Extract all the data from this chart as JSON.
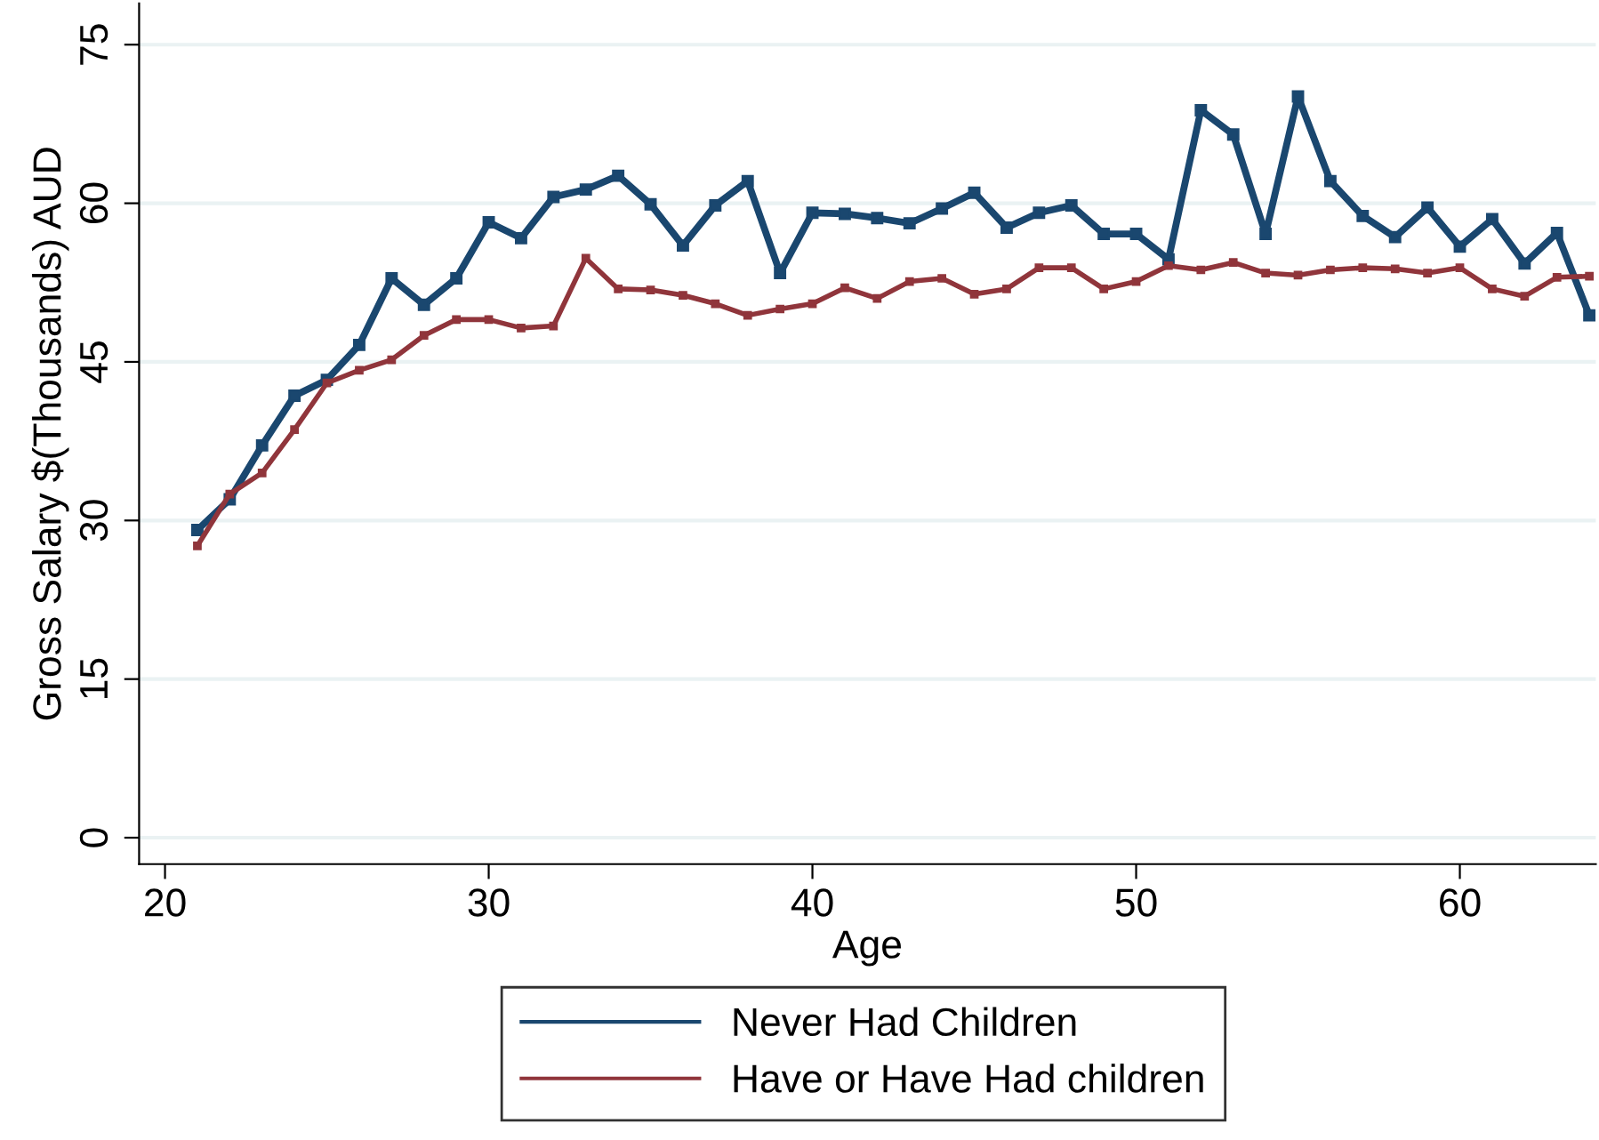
{
  "chart_data": {
    "type": "line",
    "xlabel": "Age",
    "ylabel": "Gross Salary $(Thousands) AUD",
    "x": [
      21,
      22,
      23,
      24,
      25,
      26,
      27,
      28,
      29,
      30,
      31,
      32,
      33,
      34,
      35,
      36,
      37,
      38,
      39,
      40,
      41,
      42,
      43,
      44,
      45,
      46,
      47,
      48,
      49,
      50,
      51,
      52,
      53,
      54,
      55,
      56,
      57,
      58,
      59,
      60,
      61,
      62,
      63,
      64
    ],
    "series": [
      {
        "name": "Never Had Children",
        "color": "#1a476f",
        "values": [
          29.1,
          32.0,
          37.1,
          41.8,
          43.3,
          46.6,
          52.9,
          50.4,
          52.9,
          58.2,
          56.7,
          60.6,
          61.3,
          62.6,
          59.9,
          56.0,
          59.8,
          62.1,
          53.4,
          59.1,
          59.0,
          58.6,
          58.1,
          59.5,
          61.0,
          57.7,
          59.1,
          59.8,
          57.1,
          57.1,
          54.7,
          68.8,
          66.5,
          57.1,
          70.1,
          62.1,
          58.8,
          56.8,
          59.6,
          55.9,
          58.5,
          54.3,
          57.2,
          49.4
        ]
      },
      {
        "name": "Have or Have Had children",
        "color": "#90353b",
        "values": [
          27.6,
          32.5,
          34.5,
          38.6,
          43.0,
          44.2,
          45.2,
          47.5,
          49.0,
          49.0,
          48.2,
          48.4,
          54.8,
          51.9,
          51.8,
          51.3,
          50.5,
          49.4,
          50.0,
          50.5,
          52.0,
          51.0,
          52.6,
          52.9,
          51.4,
          51.9,
          53.9,
          53.9,
          51.9,
          52.6,
          54.1,
          53.7,
          54.4,
          53.4,
          53.2,
          53.7,
          53.9,
          53.8,
          53.4,
          53.9,
          51.9,
          51.2,
          53.0,
          53.1
        ]
      }
    ],
    "xlim": [
      19.2,
      64.2
    ],
    "xticks": [
      20,
      30,
      40,
      50,
      60
    ],
    "ylim": [
      -2.5,
      78.9
    ],
    "yticks": [
      0,
      15,
      30,
      45,
      60,
      75
    ],
    "grid": "y",
    "legend": "bottom",
    "marker": "square",
    "line_style": "solid"
  }
}
